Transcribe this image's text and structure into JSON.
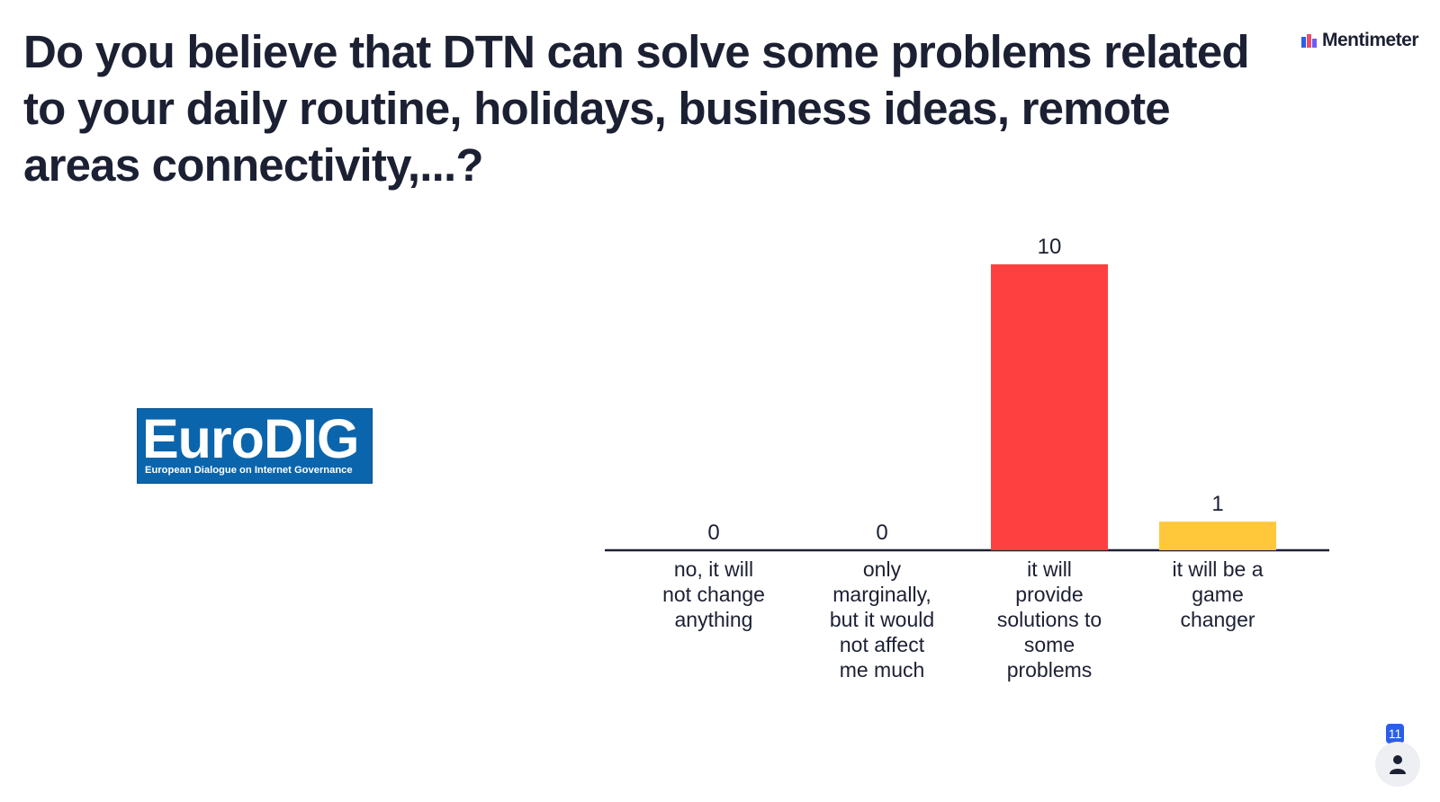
{
  "question": "Do you believe that DTN can solve some problems related to your daily routine, holidays, business ideas, remote areas connectivity,...?",
  "brand": {
    "name": "Mentimeter",
    "icon": "mentimeter-logo-icon",
    "colors": [
      "#f04b6e",
      "#6a5cf6",
      "#2a5ee8"
    ]
  },
  "logo": {
    "word": "EuroDIG",
    "tagline": "European Dialogue on Internet Governance",
    "color": "#0a65ad"
  },
  "participants": {
    "count": "11",
    "icon": "person-icon",
    "badge_color": "#2a5ee8"
  },
  "chart_data": {
    "type": "bar",
    "categories": [
      [
        "no, it will",
        "not change",
        "anything"
      ],
      [
        "only",
        "marginally,",
        "but it would",
        "not affect",
        "me much"
      ],
      [
        "it will",
        "provide",
        "solutions to",
        "some",
        "problems"
      ],
      [
        "it will be a",
        "game",
        "changer"
      ]
    ],
    "values": [
      0,
      0,
      10,
      1
    ],
    "colors": [
      "#5b7cf0",
      "#b98df5",
      "#ff4040",
      "#ffc83b"
    ],
    "title": "",
    "xlabel": "",
    "ylabel": "",
    "ylim": [
      0,
      10
    ],
    "grid": false,
    "legend": "none",
    "data_labels": true
  }
}
